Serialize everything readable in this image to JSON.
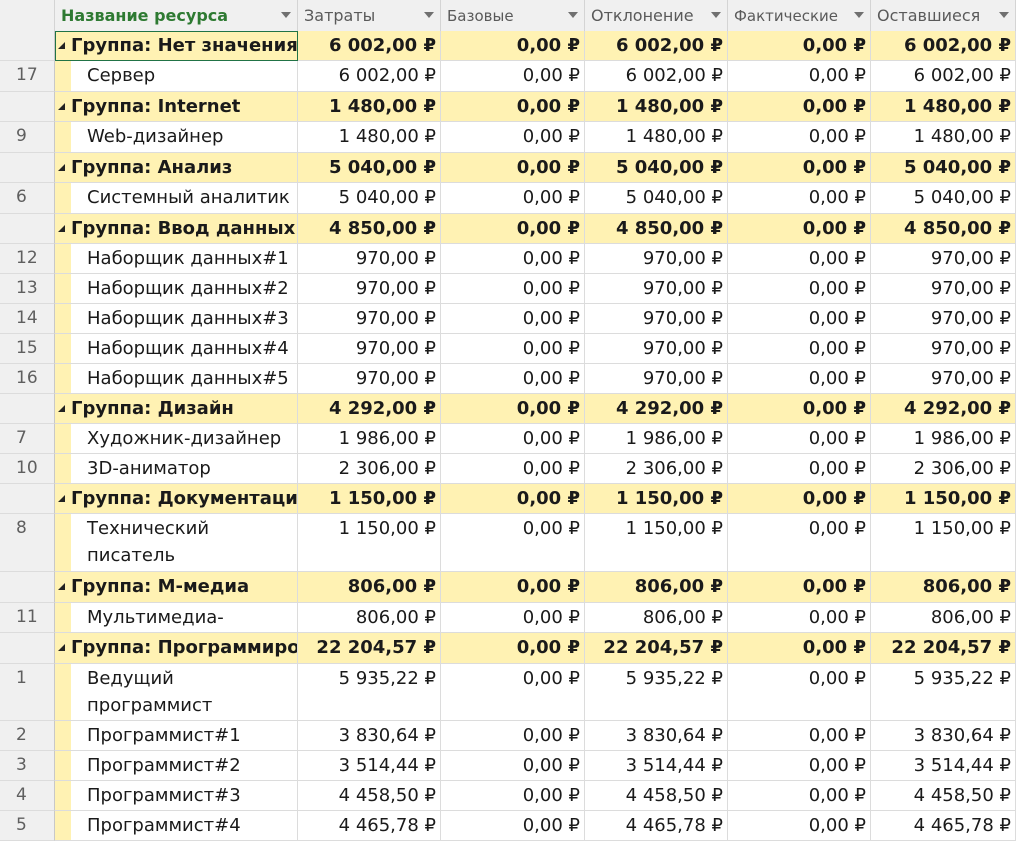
{
  "columns": {
    "name": "Название ресурса",
    "c1": "Затраты",
    "c2": "Базовые",
    "c3": "Отклонение",
    "c4": "Фактические",
    "c5": "Оставшиеся"
  },
  "rows": [
    {
      "type": "group",
      "idx": "",
      "name": "Группа: Нет значения",
      "v": [
        "6 002,00 ₽",
        "0,00 ₽",
        "6 002,00 ₽",
        "0,00 ₽",
        "6 002,00 ₽"
      ],
      "h": 30
    },
    {
      "type": "item",
      "idx": "17",
      "name": "Сервер",
      "v": [
        "6 002,00 ₽",
        "0,00 ₽",
        "6 002,00 ₽",
        "0,00 ₽",
        "6 002,00 ₽"
      ],
      "h": 31
    },
    {
      "type": "group",
      "idx": "",
      "name": "Группа: Internet",
      "v": [
        "1 480,00 ₽",
        "0,00 ₽",
        "1 480,00 ₽",
        "0,00 ₽",
        "1 480,00 ₽"
      ],
      "h": 30
    },
    {
      "type": "item",
      "idx": "9",
      "name": "Web-дизайнер",
      "v": [
        "1 480,00 ₽",
        "0,00 ₽",
        "1 480,00 ₽",
        "0,00 ₽",
        "1 480,00 ₽"
      ],
      "h": 31
    },
    {
      "type": "group",
      "idx": "",
      "name": "Группа: Анализ",
      "v": [
        "5 040,00 ₽",
        "0,00 ₽",
        "5 040,00 ₽",
        "0,00 ₽",
        "5 040,00 ₽"
      ],
      "h": 30
    },
    {
      "type": "item",
      "idx": "6",
      "name": "Системный аналитик",
      "v": [
        "5 040,00 ₽",
        "0,00 ₽",
        "5 040,00 ₽",
        "0,00 ₽",
        "5 040,00 ₽"
      ],
      "h": 31
    },
    {
      "type": "group",
      "idx": "",
      "name": "Группа: Ввод данных",
      "v": [
        "4 850,00 ₽",
        "0,00 ₽",
        "4 850,00 ₽",
        "0,00 ₽",
        "4 850,00 ₽"
      ],
      "h": 30
    },
    {
      "type": "item",
      "idx": "12",
      "name": "Наборщик данных#1",
      "v": [
        "970,00 ₽",
        "0,00 ₽",
        "970,00 ₽",
        "0,00 ₽",
        "970,00 ₽"
      ],
      "h": 30
    },
    {
      "type": "item",
      "idx": "13",
      "name": "Наборщик данных#2",
      "v": [
        "970,00 ₽",
        "0,00 ₽",
        "970,00 ₽",
        "0,00 ₽",
        "970,00 ₽"
      ],
      "h": 30
    },
    {
      "type": "item",
      "idx": "14",
      "name": "Наборщик данных#3",
      "v": [
        "970,00 ₽",
        "0,00 ₽",
        "970,00 ₽",
        "0,00 ₽",
        "970,00 ₽"
      ],
      "h": 30
    },
    {
      "type": "item",
      "idx": "15",
      "name": "Наборщик данных#4",
      "v": [
        "970,00 ₽",
        "0,00 ₽",
        "970,00 ₽",
        "0,00 ₽",
        "970,00 ₽"
      ],
      "h": 30
    },
    {
      "type": "item",
      "idx": "16",
      "name": "Наборщик данных#5",
      "v": [
        "970,00 ₽",
        "0,00 ₽",
        "970,00 ₽",
        "0,00 ₽",
        "970,00 ₽"
      ],
      "h": 30
    },
    {
      "type": "group",
      "idx": "",
      "name": "Группа: Дизайн",
      "v": [
        "4 292,00 ₽",
        "0,00 ₽",
        "4 292,00 ₽",
        "0,00 ₽",
        "4 292,00 ₽"
      ],
      "h": 30
    },
    {
      "type": "item",
      "idx": "7",
      "name": "Художник-дизайнер",
      "v": [
        "1 986,00 ₽",
        "0,00 ₽",
        "1 986,00 ₽",
        "0,00 ₽",
        "1 986,00 ₽"
      ],
      "h": 30
    },
    {
      "type": "item",
      "idx": "10",
      "name": "3D-аниматор",
      "v": [
        "2 306,00 ₽",
        "0,00 ₽",
        "2 306,00 ₽",
        "0,00 ₽",
        "2 306,00 ₽"
      ],
      "h": 30
    },
    {
      "type": "group",
      "idx": "",
      "name": "Группа: Документация",
      "v": [
        "1 150,00 ₽",
        "0,00 ₽",
        "1 150,00 ₽",
        "0,00 ₽",
        "1 150,00 ₽"
      ],
      "h": 30
    },
    {
      "type": "item",
      "idx": "8",
      "name": "Технический писатель",
      "v": [
        "1 150,00 ₽",
        "0,00 ₽",
        "1 150,00 ₽",
        "0,00 ₽",
        "1 150,00 ₽"
      ],
      "h": 58
    },
    {
      "type": "group",
      "idx": "",
      "name": "Группа: М-медиа",
      "v": [
        "806,00 ₽",
        "0,00 ₽",
        "806,00 ₽",
        "0,00 ₽",
        "806,00 ₽"
      ],
      "h": 31
    },
    {
      "type": "item",
      "idx": "11",
      "name": "Мультимедиа-корреспондент",
      "v": [
        "806,00 ₽",
        "0,00 ₽",
        "806,00 ₽",
        "0,00 ₽",
        "806,00 ₽"
      ],
      "h": 30
    },
    {
      "type": "group",
      "idx": "",
      "name": "Группа: Программирование",
      "v": [
        "22 204,57 ₽",
        "0,00 ₽",
        "22 204,57 ₽",
        "0,00 ₽",
        "22 204,57 ₽"
      ],
      "h": 31
    },
    {
      "type": "item",
      "idx": "1",
      "name": "Ведущий программист",
      "v": [
        "5 935,22 ₽",
        "0,00 ₽",
        "5 935,22 ₽",
        "0,00 ₽",
        "5 935,22 ₽"
      ],
      "h": 57
    },
    {
      "type": "item",
      "idx": "2",
      "name": "Программист#1",
      "v": [
        "3 830,64 ₽",
        "0,00 ₽",
        "3 830,64 ₽",
        "0,00 ₽",
        "3 830,64 ₽"
      ],
      "h": 30
    },
    {
      "type": "item",
      "idx": "3",
      "name": "Программист#2",
      "v": [
        "3 514,44 ₽",
        "0,00 ₽",
        "3 514,44 ₽",
        "0,00 ₽",
        "3 514,44 ₽"
      ],
      "h": 30
    },
    {
      "type": "item",
      "idx": "4",
      "name": "Программист#3",
      "v": [
        "4 458,50 ₽",
        "0,00 ₽",
        "4 458,50 ₽",
        "0,00 ₽",
        "4 458,50 ₽"
      ],
      "h": 30
    },
    {
      "type": "item",
      "idx": "5",
      "name": "Программист#4",
      "v": [
        "4 465,78 ₽",
        "0,00 ₽",
        "4 465,78 ₽",
        "0,00 ₽",
        "4 465,78 ₽"
      ],
      "h": 30
    }
  ]
}
